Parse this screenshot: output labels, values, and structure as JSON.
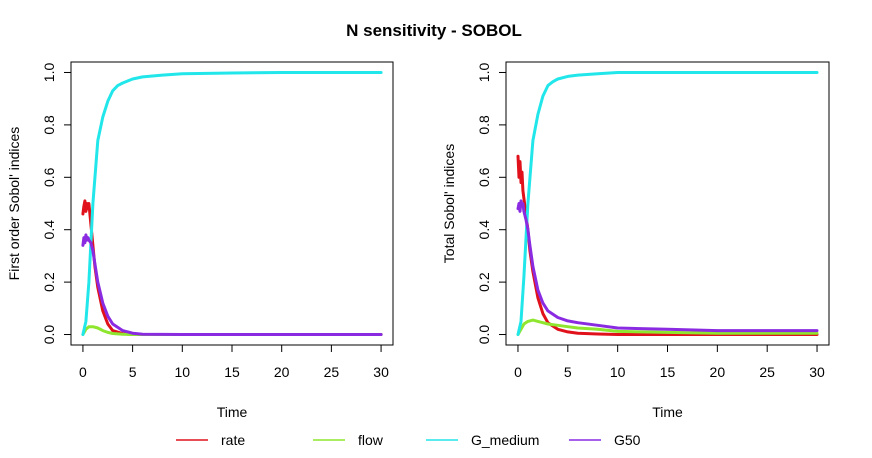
{
  "title": "N sensitivity - SOBOL",
  "legend": [
    {
      "name": "rate",
      "color": "#e0111b"
    },
    {
      "name": "flow",
      "color": "#8ee62e"
    },
    {
      "name": "G_medium",
      "color": "#21e6ea"
    },
    {
      "name": "G50",
      "color": "#8a2be2"
    }
  ],
  "chart_data": [
    {
      "type": "line",
      "xlabel": "Time",
      "ylabel": "First order Sobol' indices",
      "xlim": [
        -1.2,
        31.2
      ],
      "ylim": [
        -0.04,
        1.04
      ],
      "x_ticks": [
        0,
        5,
        10,
        15,
        20,
        25,
        30
      ],
      "y_ticks": [
        0.0,
        0.2,
        0.4,
        0.6,
        0.8,
        1.0
      ],
      "y_tick_labels": [
        "0.0",
        "0.2",
        "0.4",
        "0.6",
        "0.8",
        "1.0"
      ],
      "series": [
        {
          "name": "rate",
          "color": "#e0111b",
          "x": [
            0,
            0.1,
            0.2,
            0.3,
            0.4,
            0.5,
            0.6,
            0.7,
            0.8,
            0.9,
            1.0,
            1.2,
            1.5,
            2.0,
            2.5,
            3.0,
            4.0,
            5.0,
            10,
            20,
            30
          ],
          "y": [
            0.46,
            0.49,
            0.51,
            0.47,
            0.5,
            0.48,
            0.5,
            0.46,
            0.42,
            0.38,
            0.34,
            0.26,
            0.18,
            0.09,
            0.04,
            0.015,
            0.003,
            0.0,
            0.0,
            0.0,
            0.0
          ]
        },
        {
          "name": "flow",
          "color": "#8ee62e",
          "x": [
            0,
            0.3,
            0.6,
            1.0,
            1.5,
            2.0,
            2.5,
            3.0,
            4.0,
            5.0,
            10,
            20,
            30
          ],
          "y": [
            0.0,
            0.02,
            0.03,
            0.03,
            0.025,
            0.015,
            0.008,
            0.004,
            0.001,
            0.0,
            0.0,
            0.0,
            0.0
          ]
        },
        {
          "name": "G_medium",
          "color": "#21e6ea",
          "x": [
            0,
            0.3,
            0.6,
            1.0,
            1.5,
            2.0,
            2.5,
            3.0,
            3.5,
            4.0,
            5.0,
            6.0,
            8.0,
            10,
            15,
            20,
            30
          ],
          "y": [
            0.0,
            0.05,
            0.2,
            0.5,
            0.74,
            0.83,
            0.89,
            0.93,
            0.95,
            0.96,
            0.975,
            0.983,
            0.99,
            0.995,
            0.998,
            1.0,
            1.0
          ]
        },
        {
          "name": "G50",
          "color": "#8a2be2",
          "x": [
            0,
            0.1,
            0.2,
            0.3,
            0.4,
            0.5,
            0.6,
            0.8,
            1.0,
            1.2,
            1.5,
            2.0,
            2.5,
            3.0,
            4.0,
            5.0,
            6.0,
            10,
            20,
            30
          ],
          "y": [
            0.34,
            0.37,
            0.35,
            0.38,
            0.36,
            0.37,
            0.36,
            0.35,
            0.32,
            0.27,
            0.2,
            0.12,
            0.07,
            0.04,
            0.015,
            0.005,
            0.001,
            0.0,
            0.0,
            0.0
          ]
        }
      ]
    },
    {
      "type": "line",
      "xlabel": "Time",
      "ylabel": "Total Sobol' indices",
      "xlim": [
        -1.2,
        31.2
      ],
      "ylim": [
        -0.04,
        1.04
      ],
      "x_ticks": [
        0,
        5,
        10,
        15,
        20,
        25,
        30
      ],
      "y_ticks": [
        0.0,
        0.2,
        0.4,
        0.6,
        0.8,
        1.0
      ],
      "y_tick_labels": [
        "0.0",
        "0.2",
        "0.4",
        "0.6",
        "0.8",
        "1.0"
      ],
      "series": [
        {
          "name": "rate",
          "color": "#e0111b",
          "x": [
            0,
            0.1,
            0.2,
            0.3,
            0.4,
            0.5,
            0.6,
            0.8,
            1.0,
            1.2,
            1.5,
            2.0,
            2.5,
            3.0,
            4.0,
            5.0,
            6.0,
            8.0,
            10,
            20,
            30
          ],
          "y": [
            0.68,
            0.6,
            0.66,
            0.58,
            0.62,
            0.55,
            0.52,
            0.46,
            0.4,
            0.32,
            0.24,
            0.14,
            0.08,
            0.045,
            0.02,
            0.01,
            0.005,
            0.002,
            0.0,
            0.0,
            0.0
          ]
        },
        {
          "name": "flow",
          "color": "#8ee62e",
          "x": [
            0,
            0.3,
            0.6,
            1.0,
            1.5,
            2.0,
            2.5,
            3.0,
            4.0,
            5.0,
            6.0,
            8.0,
            10,
            15,
            20,
            30
          ],
          "y": [
            0.0,
            0.02,
            0.04,
            0.05,
            0.055,
            0.05,
            0.045,
            0.04,
            0.035,
            0.03,
            0.025,
            0.02,
            0.012,
            0.008,
            0.005,
            0.005
          ]
        },
        {
          "name": "G_medium",
          "color": "#21e6ea",
          "x": [
            0,
            0.3,
            0.6,
            1.0,
            1.5,
            2.0,
            2.5,
            3.0,
            3.5,
            4.0,
            5.0,
            6.0,
            8.0,
            10,
            15,
            20,
            30
          ],
          "y": [
            0.0,
            0.05,
            0.22,
            0.5,
            0.74,
            0.84,
            0.91,
            0.95,
            0.965,
            0.975,
            0.985,
            0.99,
            0.995,
            1.0,
            1.0,
            1.0,
            1.0
          ]
        },
        {
          "name": "G50",
          "color": "#8a2be2",
          "x": [
            0,
            0.1,
            0.2,
            0.3,
            0.4,
            0.5,
            0.6,
            0.8,
            1.0,
            1.2,
            1.5,
            2.0,
            2.5,
            3.0,
            4.0,
            5.0,
            6.0,
            8.0,
            10,
            15,
            20,
            30
          ],
          "y": [
            0.48,
            0.5,
            0.47,
            0.51,
            0.49,
            0.5,
            0.47,
            0.44,
            0.4,
            0.34,
            0.26,
            0.17,
            0.12,
            0.09,
            0.065,
            0.052,
            0.045,
            0.035,
            0.025,
            0.02,
            0.015,
            0.015
          ]
        }
      ]
    }
  ]
}
